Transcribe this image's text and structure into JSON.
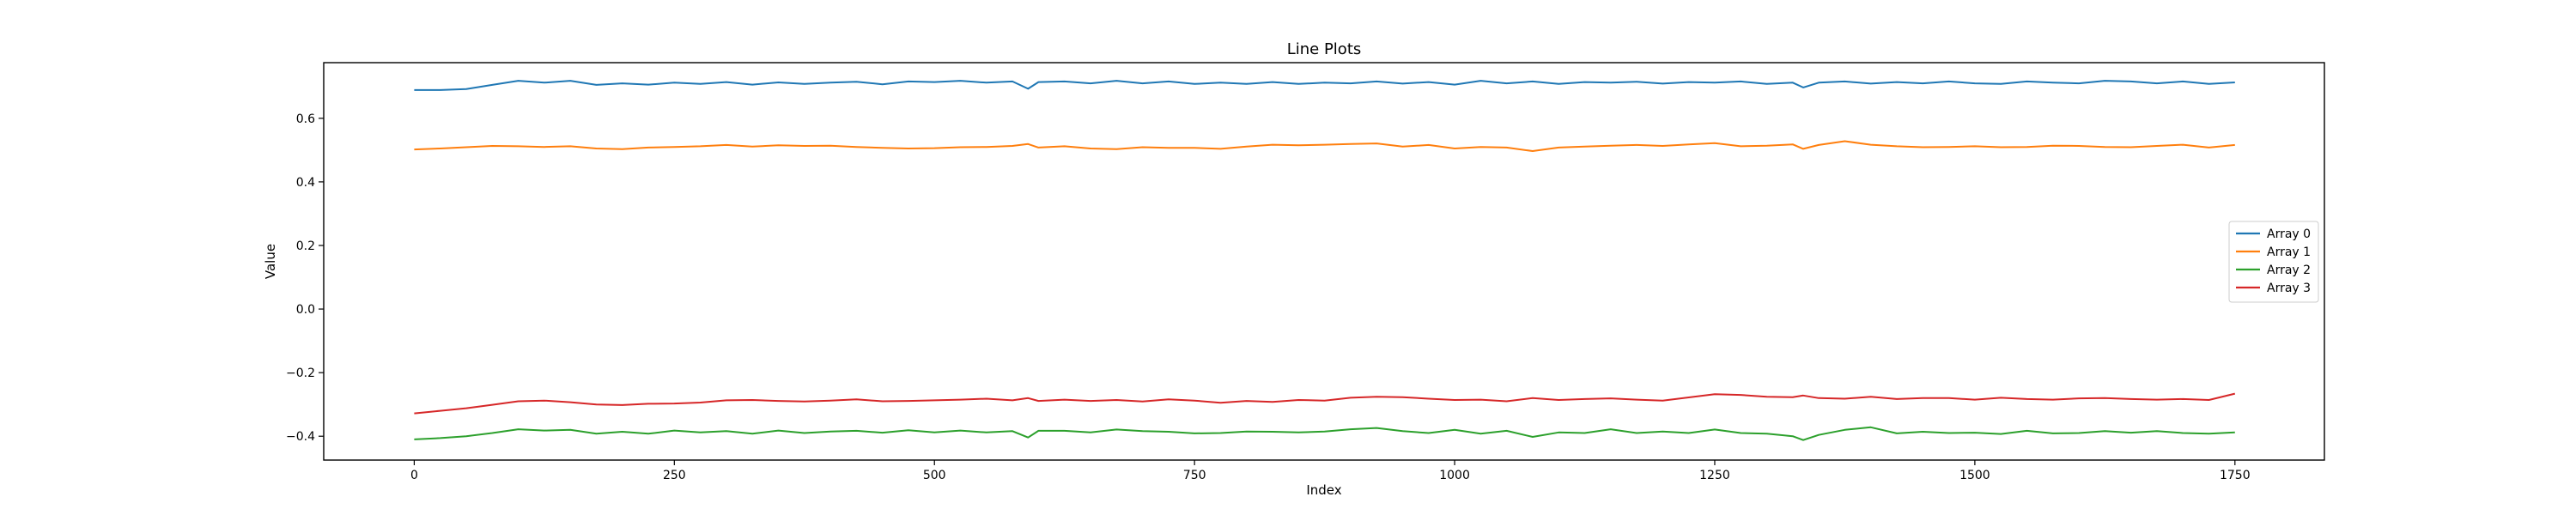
{
  "chart_data": {
    "type": "line",
    "title": "Line Plots",
    "xlabel": "Index",
    "ylabel": "Value",
    "xlim": [
      -87,
      1836
    ],
    "ylim": [
      -0.475,
      0.775
    ],
    "x_ticks": [
      0,
      250,
      500,
      750,
      1000,
      1250,
      1500,
      1750
    ],
    "x_tick_labels": [
      "0",
      "250",
      "500",
      "750",
      "1000",
      "1250",
      "1500",
      "1750"
    ],
    "y_ticks": [
      -0.4,
      -0.2,
      0.0,
      0.2,
      0.4,
      0.6
    ],
    "y_tick_labels": [
      "−0.4",
      "−0.2",
      "0.0",
      "0.2",
      "0.4",
      "0.6"
    ],
    "legend_position": "center-right",
    "grid": false,
    "x": [
      0,
      25,
      50,
      75,
      100,
      125,
      150,
      175,
      200,
      225,
      250,
      275,
      300,
      325,
      350,
      375,
      400,
      425,
      450,
      475,
      500,
      525,
      550,
      575,
      590,
      600,
      625,
      650,
      675,
      700,
      725,
      750,
      775,
      800,
      825,
      850,
      875,
      900,
      925,
      950,
      975,
      1000,
      1025,
      1050,
      1075,
      1100,
      1125,
      1150,
      1175,
      1200,
      1225,
      1250,
      1275,
      1300,
      1325,
      1335,
      1350,
      1375,
      1400,
      1425,
      1450,
      1475,
      1500,
      1525,
      1550,
      1575,
      1600,
      1625,
      1650,
      1675,
      1700,
      1725,
      1750
    ],
    "series": [
      {
        "name": "Array 0",
        "color": "#1f77b4",
        "values": [
          0.689,
          0.689,
          0.692,
          0.705,
          0.718,
          0.712,
          0.718,
          0.705,
          0.71,
          0.706,
          0.712,
          0.708,
          0.714,
          0.706,
          0.713,
          0.708,
          0.712,
          0.715,
          0.707,
          0.716,
          0.714,
          0.718,
          0.712,
          0.716,
          0.693,
          0.714,
          0.716,
          0.71,
          0.718,
          0.71,
          0.716,
          0.708,
          0.712,
          0.708,
          0.714,
          0.708,
          0.712,
          0.71,
          0.716,
          0.709,
          0.714,
          0.706,
          0.718,
          0.71,
          0.716,
          0.708,
          0.714,
          0.712,
          0.715,
          0.709,
          0.714,
          0.712,
          0.716,
          0.708,
          0.712,
          0.697,
          0.712,
          0.716,
          0.709,
          0.714,
          0.71,
          0.716,
          0.71,
          0.708,
          0.716,
          0.712,
          0.71,
          0.718,
          0.716,
          0.71,
          0.716,
          0.708,
          0.713
        ]
      },
      {
        "name": "Array 1",
        "color": "#ff7f0e",
        "values": [
          0.502,
          0.505,
          0.509,
          0.513,
          0.512,
          0.51,
          0.512,
          0.505,
          0.503,
          0.508,
          0.51,
          0.512,
          0.516,
          0.511,
          0.515,
          0.513,
          0.514,
          0.51,
          0.507,
          0.505,
          0.506,
          0.509,
          0.51,
          0.513,
          0.519,
          0.508,
          0.512,
          0.505,
          0.503,
          0.509,
          0.507,
          0.507,
          0.504,
          0.511,
          0.517,
          0.515,
          0.517,
          0.519,
          0.521,
          0.511,
          0.516,
          0.505,
          0.51,
          0.508,
          0.497,
          0.508,
          0.511,
          0.514,
          0.516,
          0.513,
          0.518,
          0.522,
          0.512,
          0.514,
          0.518,
          0.504,
          0.516,
          0.528,
          0.517,
          0.512,
          0.509,
          0.51,
          0.512,
          0.509,
          0.51,
          0.514,
          0.513,
          0.51,
          0.509,
          0.513,
          0.517,
          0.508,
          0.516
        ]
      },
      {
        "name": "Array 2",
        "color": "#2ca02c",
        "values": [
          -0.41,
          -0.406,
          -0.4,
          -0.39,
          -0.378,
          -0.382,
          -0.38,
          -0.392,
          -0.386,
          -0.392,
          -0.382,
          -0.388,
          -0.384,
          -0.392,
          -0.382,
          -0.39,
          -0.385,
          -0.383,
          -0.389,
          -0.381,
          -0.388,
          -0.382,
          -0.388,
          -0.384,
          -0.404,
          -0.383,
          -0.383,
          -0.388,
          -0.379,
          -0.384,
          -0.386,
          -0.391,
          -0.39,
          -0.385,
          -0.386,
          -0.388,
          -0.385,
          -0.378,
          -0.374,
          -0.384,
          -0.39,
          -0.38,
          -0.392,
          -0.383,
          -0.402,
          -0.388,
          -0.39,
          -0.378,
          -0.39,
          -0.385,
          -0.39,
          -0.379,
          -0.39,
          -0.392,
          -0.4,
          -0.412,
          -0.396,
          -0.38,
          -0.372,
          -0.391,
          -0.386,
          -0.39,
          -0.389,
          -0.393,
          -0.383,
          -0.391,
          -0.39,
          -0.384,
          -0.389,
          -0.384,
          -0.39,
          -0.392,
          -0.388
        ]
      },
      {
        "name": "Array 3",
        "color": "#d62728",
        "values": [
          -0.328,
          -0.32,
          -0.312,
          -0.301,
          -0.29,
          -0.288,
          -0.293,
          -0.3,
          -0.302,
          -0.298,
          -0.297,
          -0.294,
          -0.287,
          -0.286,
          -0.289,
          -0.291,
          -0.288,
          -0.284,
          -0.29,
          -0.289,
          -0.287,
          -0.285,
          -0.282,
          -0.287,
          -0.28,
          -0.289,
          -0.285,
          -0.289,
          -0.286,
          -0.291,
          -0.284,
          -0.288,
          -0.295,
          -0.289,
          -0.292,
          -0.286,
          -0.288,
          -0.279,
          -0.276,
          -0.277,
          -0.282,
          -0.286,
          -0.285,
          -0.29,
          -0.28,
          -0.286,
          -0.283,
          -0.281,
          -0.285,
          -0.288,
          -0.278,
          -0.268,
          -0.27,
          -0.276,
          -0.277,
          -0.272,
          -0.28,
          -0.282,
          -0.276,
          -0.283,
          -0.28,
          -0.28,
          -0.285,
          -0.279,
          -0.283,
          -0.285,
          -0.281,
          -0.28,
          -0.283,
          -0.285,
          -0.283,
          -0.286,
          -0.266
        ]
      }
    ]
  }
}
